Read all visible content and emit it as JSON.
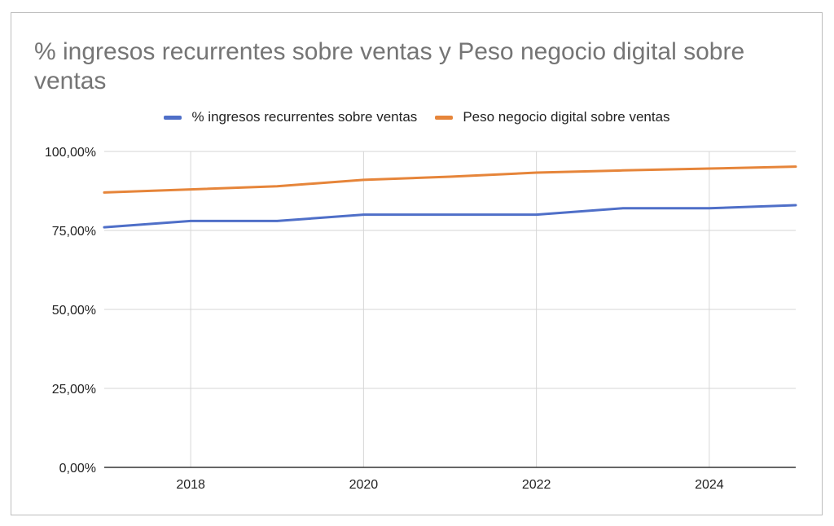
{
  "chart_data": {
    "type": "line",
    "title": "% ingresos recurrentes sobre ventas y Peso negocio digital sobre ventas",
    "xlabel": "",
    "ylabel": "",
    "x": [
      2017,
      2018,
      2019,
      2020,
      2021,
      2022,
      2023,
      2024,
      2025
    ],
    "xlim": [
      2017,
      2025
    ],
    "ylim": [
      0,
      100
    ],
    "x_ticks": [
      "2018",
      "2020",
      "2022",
      "2024"
    ],
    "y_ticks": [
      "0,00%",
      "25,00%",
      "50,00%",
      "75,00%",
      "100,00%"
    ],
    "legend_position": "top",
    "grid": true,
    "series": [
      {
        "name": "% ingresos recurrentes sobre ventas",
        "color": "#4f6fc8",
        "values": [
          76,
          78,
          78,
          80,
          80,
          80,
          82,
          82,
          83
        ]
      },
      {
        "name": "Peso negocio digital sobre ventas",
        "color": "#e6853a",
        "values": [
          87,
          88,
          89,
          91,
          92,
          93.3,
          94,
          94.6,
          95.2
        ]
      }
    ]
  }
}
